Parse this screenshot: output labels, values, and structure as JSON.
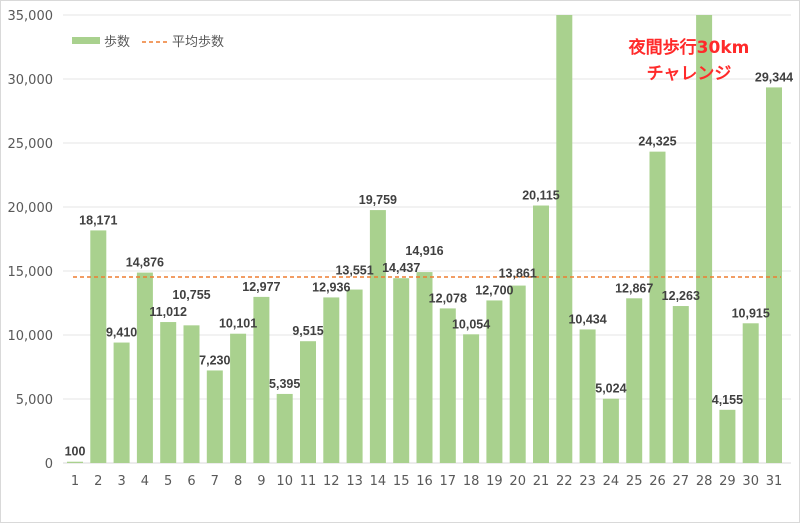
{
  "chart_data": {
    "type": "bar",
    "categories": [
      "1",
      "2",
      "3",
      "4",
      "5",
      "6",
      "7",
      "8",
      "9",
      "10",
      "11",
      "12",
      "13",
      "14",
      "15",
      "16",
      "17",
      "18",
      "19",
      "20",
      "21",
      "22",
      "23",
      "24",
      "25",
      "26",
      "27",
      "28",
      "29",
      "30",
      "31"
    ],
    "series": [
      {
        "name": "歩数",
        "type": "bar",
        "color": "#a9d18e",
        "values": [
          100,
          18171,
          9410,
          14876,
          11012,
          10755,
          7230,
          10101,
          12977,
          5395,
          9515,
          12936,
          13551,
          19759,
          14437,
          14916,
          12078,
          10054,
          12700,
          13861,
          20115,
          null,
          10434,
          5024,
          12867,
          24325,
          12263,
          null,
          4155,
          10915,
          29344
        ],
        "clipped_above_axis": [
          "22",
          "28"
        ]
      },
      {
        "name": "平均歩数",
        "type": "line",
        "style": "dashed",
        "color": "#ed7d31",
        "value": 14531
      }
    ],
    "data_labels": [
      "100",
      "18,171",
      "9,410",
      "14,876",
      "11,012",
      "10,755",
      "7,230",
      "10,101",
      "12,977",
      "5,395",
      "9,515",
      "12,936",
      "13,551",
      "19,759",
      "14,437",
      "14,916",
      "12,078",
      "10,054",
      "12,700",
      "13,861",
      "20,115",
      "",
      "10,434",
      "5,024",
      "12,867",
      "24,325",
      "12,263",
      "",
      "4,155",
      "10,915",
      "29,344"
    ],
    "yticks": [
      "0",
      "5,000",
      "10,000",
      "15,000",
      "20,000",
      "25,000",
      "30,000",
      "35,000"
    ],
    "ylim": [
      0,
      35000
    ],
    "grid": true,
    "legend": "top-left",
    "annotation": [
      "夜間歩行30km",
      "チャレンジ"
    ],
    "annotation_color": "#ff2a2a"
  }
}
